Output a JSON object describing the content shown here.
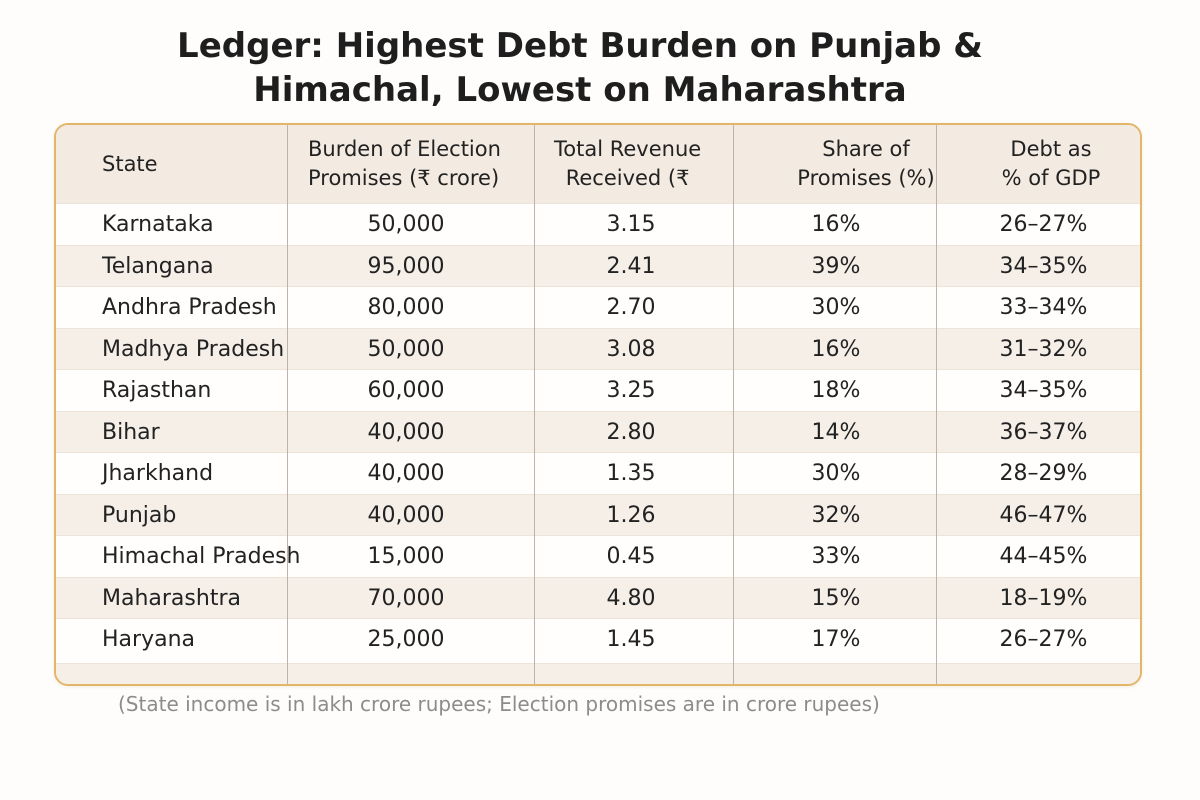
{
  "chart_data": {
    "type": "table",
    "title": "Ledger: Highest Debt Burden on Punjab & Himachal, Lowest on Maharashtra",
    "title_lines": [
      "Ledger: Highest Debt Burden on Punjab &",
      "Himachal, Lowest on Maharashtra"
    ],
    "columns": [
      {
        "line1": "State",
        "line2": ""
      },
      {
        "line1": "Burden of Election",
        "line2": "Promises (₹ crore)"
      },
      {
        "line1": "Total Revenue",
        "line2": "Received (₹"
      },
      {
        "line1": "Share of",
        "line2": "Promises (%)"
      },
      {
        "line1": "Debt as",
        "line2": "% of GDP"
      }
    ],
    "rows": [
      [
        "Karnataka",
        "50,000",
        "3.15",
        "16%",
        "26–27%"
      ],
      [
        "Telangana",
        "95,000",
        "2.41",
        "39%",
        "34–35%"
      ],
      [
        "Andhra Pradesh",
        "80,000",
        "2.70",
        "30%",
        "33–34%"
      ],
      [
        "Madhya Pradesh",
        "50,000",
        "3.08",
        "16%",
        "31–32%"
      ],
      [
        "Rajasthan",
        "60,000",
        "3.25",
        "18%",
        "34–35%"
      ],
      [
        "Bihar",
        "40,000",
        "2.80",
        "14%",
        "36–37%"
      ],
      [
        "Jharkhand",
        "40,000",
        "1.35",
        "30%",
        "28–29%"
      ],
      [
        "Punjab",
        "40,000",
        "1.26",
        "32%",
        "46–47%"
      ],
      [
        "Himachal Pradesh",
        "15,000",
        "0.45",
        "33%",
        "44–45%"
      ],
      [
        "Maharashtra",
        "70,000",
        "4.80",
        "15%",
        "18–19%"
      ],
      [
        "Haryana",
        "25,000",
        "1.45",
        "17%",
        "26–27%"
      ]
    ],
    "note": "(State income is in lakh crore rupees; Election promises are in crore rupees)"
  },
  "colors": {
    "border": "#e2b66a",
    "header_bg": "#f3ebe1",
    "alt_row_bg": "#f5efe8",
    "note_text": "#8c8c8c"
  }
}
